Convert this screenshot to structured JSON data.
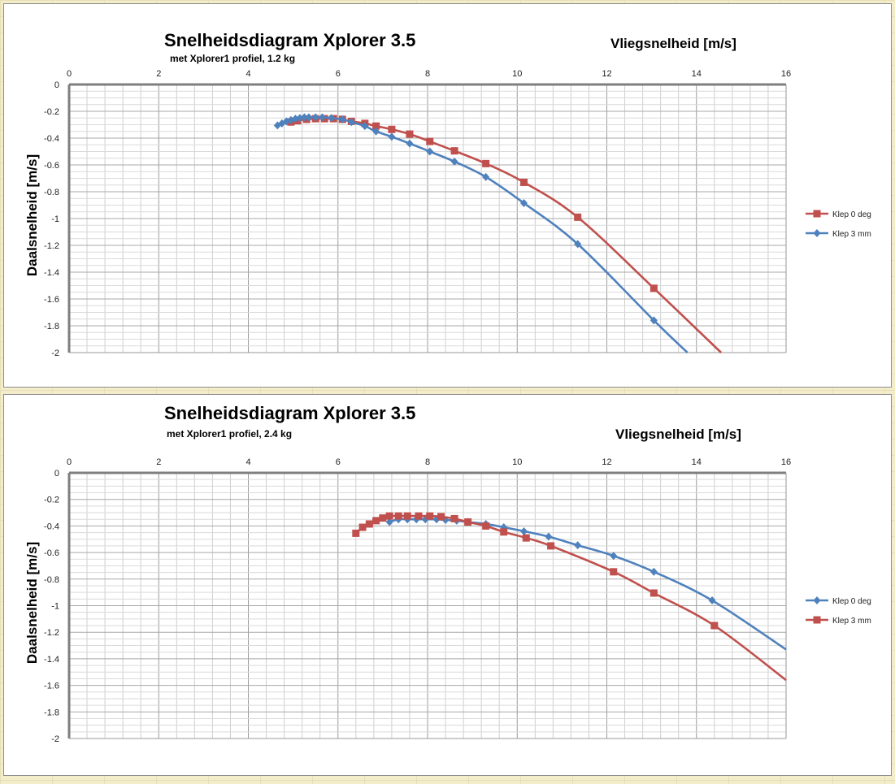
{
  "chart_data": [
    {
      "type": "line",
      "title": "Snelheidsdiagram Xplorer 3.5",
      "subtitle": "met Xplorer1 profiel, 1.2 kg",
      "xlabel": "Vliegsnelheid  [m/s]",
      "ylabel": "Daalsnelheid  [m/s]",
      "xlim": [
        0,
        16
      ],
      "ylim": [
        -2,
        0
      ],
      "xticks": [
        "0",
        "2",
        "4",
        "6",
        "8",
        "10",
        "12",
        "14",
        "16"
      ],
      "yticks": [
        "0",
        "-0.2",
        "-0.4",
        "-0.6",
        "-0.8",
        "-1",
        "-1.2",
        "-1.4",
        "-1.6",
        "-1.8",
        "-2"
      ],
      "grid": true,
      "x_axis_position": "top",
      "legend_position": "right",
      "series": [
        {
          "name": "Klep 0 deg",
          "color": "#c0504d",
          "marker": "square",
          "points": [
            [
              4.95,
              -0.28
            ],
            [
              5.1,
              -0.27
            ],
            [
              5.3,
              -0.26
            ],
            [
              5.5,
              -0.255
            ],
            [
              5.7,
              -0.255
            ],
            [
              5.9,
              -0.255
            ],
            [
              6.1,
              -0.26
            ],
            [
              6.3,
              -0.275
            ],
            [
              6.6,
              -0.29
            ],
            [
              6.85,
              -0.31
            ],
            [
              7.2,
              -0.335
            ],
            [
              7.6,
              -0.37
            ],
            [
              8.05,
              -0.425
            ],
            [
              8.6,
              -0.495
            ],
            [
              9.3,
              -0.59
            ],
            [
              10.15,
              -0.73
            ],
            [
              11.35,
              -0.99
            ],
            [
              13.05,
              -1.52
            ]
          ],
          "curve_end": [
            14.55,
            -2.0
          ]
        },
        {
          "name": "Klep 3 mm",
          "color": "#4f81bd",
          "marker": "diamond",
          "points": [
            [
              4.65,
              -0.305
            ],
            [
              4.75,
              -0.29
            ],
            [
              4.85,
              -0.275
            ],
            [
              4.95,
              -0.265
            ],
            [
              5.05,
              -0.255
            ],
            [
              5.15,
              -0.25
            ],
            [
              5.25,
              -0.245
            ],
            [
              5.35,
              -0.245
            ],
            [
              5.5,
              -0.245
            ],
            [
              5.65,
              -0.245
            ],
            [
              5.85,
              -0.25
            ],
            [
              6.1,
              -0.26
            ],
            [
              6.3,
              -0.28
            ],
            [
              6.6,
              -0.31
            ],
            [
              6.85,
              -0.35
            ],
            [
              7.2,
              -0.39
            ],
            [
              7.6,
              -0.44
            ],
            [
              8.05,
              -0.5
            ],
            [
              8.6,
              -0.575
            ],
            [
              9.3,
              -0.69
            ],
            [
              10.15,
              -0.885
            ],
            [
              11.35,
              -1.19
            ],
            [
              13.05,
              -1.76
            ]
          ],
          "curve_end": [
            13.8,
            -2.0
          ]
        }
      ]
    },
    {
      "type": "line",
      "title": "Snelheidsdiagram Xplorer 3.5",
      "subtitle": "met Xplorer1 profiel,  2.4 kg",
      "xlabel": "Vliegsnelheid  [m/s]",
      "ylabel": "Daalsnelheid  [m/s]",
      "xlim": [
        0,
        16
      ],
      "ylim": [
        -2,
        0
      ],
      "xticks": [
        "0",
        "2",
        "4",
        "6",
        "8",
        "10",
        "12",
        "14",
        "16"
      ],
      "yticks": [
        "0",
        "-0.2",
        "-0.4",
        "-0.6",
        "-0.8",
        "-1",
        "-1.2",
        "-1.4",
        "-1.6",
        "-1.8",
        "-2"
      ],
      "grid": true,
      "x_axis_position": "top",
      "legend_position": "right",
      "series": [
        {
          "name": "Klep 0 deg",
          "color": "#4f81bd",
          "marker": "diamond",
          "points": [
            [
              7.15,
              -0.37
            ],
            [
              7.35,
              -0.35
            ],
            [
              7.55,
              -0.35
            ],
            [
              7.75,
              -0.35
            ],
            [
              7.95,
              -0.35
            ],
            [
              8.2,
              -0.35
            ],
            [
              8.4,
              -0.355
            ],
            [
              8.65,
              -0.36
            ],
            [
              8.9,
              -0.37
            ],
            [
              9.3,
              -0.385
            ],
            [
              9.7,
              -0.41
            ],
            [
              10.15,
              -0.44
            ],
            [
              10.7,
              -0.48
            ],
            [
              11.35,
              -0.545
            ],
            [
              12.15,
              -0.625
            ],
            [
              13.05,
              -0.745
            ],
            [
              14.35,
              -0.96
            ]
          ],
          "curve_end": [
            16.0,
            -1.33
          ]
        },
        {
          "name": "Klep 3 mm",
          "color": "#c0504d",
          "marker": "square",
          "points": [
            [
              6.4,
              -0.455
            ],
            [
              6.55,
              -0.41
            ],
            [
              6.7,
              -0.385
            ],
            [
              6.85,
              -0.36
            ],
            [
              7.0,
              -0.34
            ],
            [
              7.15,
              -0.325
            ],
            [
              7.35,
              -0.325
            ],
            [
              7.55,
              -0.325
            ],
            [
              7.8,
              -0.325
            ],
            [
              8.05,
              -0.325
            ],
            [
              8.3,
              -0.33
            ],
            [
              8.6,
              -0.345
            ],
            [
              8.9,
              -0.37
            ],
            [
              9.3,
              -0.4
            ],
            [
              9.7,
              -0.445
            ],
            [
              10.2,
              -0.49
            ],
            [
              10.75,
              -0.55
            ],
            [
              12.15,
              -0.745
            ],
            [
              13.05,
              -0.905
            ],
            [
              14.4,
              -1.15
            ]
          ],
          "curve_end": [
            16.0,
            -1.56
          ]
        }
      ]
    }
  ]
}
